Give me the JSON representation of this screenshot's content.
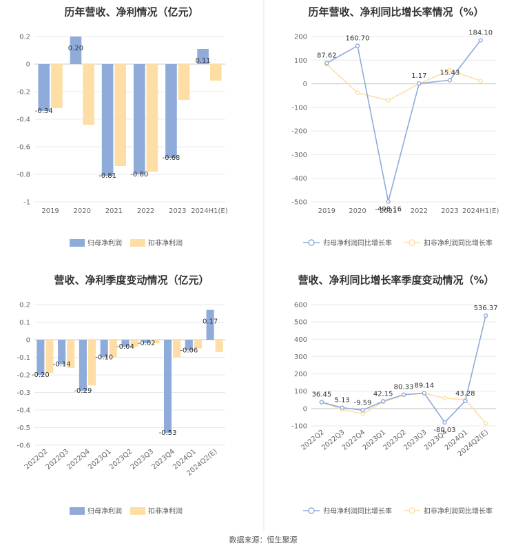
{
  "colors": {
    "primary": "#8eabd9",
    "secondary": "#ffdea6",
    "grid": "#e8e8e8",
    "axis": "#c8c8c8",
    "divider": "#e6e6e6"
  },
  "legend_labels": {
    "bar_primary": "归母净利润",
    "bar_secondary": "扣非净利润",
    "line_primary": "归母净利润同比增长率",
    "line_secondary": "扣非净利润同比增长率"
  },
  "source": "数据来源：恒生聚源",
  "chart_data": [
    {
      "type": "bar",
      "title": "历年营收、净利情况（亿元）",
      "categories": [
        "2019",
        "2020",
        "2021",
        "2022",
        "2023",
        "2024H1(E)"
      ],
      "series": [
        {
          "name": "归母净利润",
          "values": [
            -0.34,
            0.2,
            -0.81,
            -0.8,
            -0.68,
            0.11
          ]
        },
        {
          "name": "扣非净利润",
          "values": [
            -0.32,
            -0.44,
            -0.74,
            -0.78,
            -0.26,
            -0.12
          ]
        }
      ],
      "data_labels": [
        "-0.34",
        "0.20",
        "-0.81",
        "-0.80",
        "-0.68",
        "0.11"
      ],
      "y_ticks": [
        "0.2",
        "0",
        "-0.2",
        "-0.4",
        "-0.6",
        "-0.8",
        "-1"
      ],
      "ylim": [
        -1,
        0.2
      ],
      "grid": true,
      "legend": "bottom"
    },
    {
      "type": "line",
      "title": "历年营收、净利同比增长率情况（%）",
      "categories": [
        "2019",
        "2020",
        "2021",
        "2022",
        "2023",
        "2024H1(E)"
      ],
      "series": [
        {
          "name": "归母净利润同比增长率",
          "values": [
            87.62,
            160.7,
            -498.16,
            1.17,
            15.43,
            184.1
          ]
        },
        {
          "name": "扣非净利润同比增长率",
          "values": [
            82,
            -38,
            -70,
            0,
            58,
            12
          ]
        }
      ],
      "data_labels": [
        "87.62",
        "160.70",
        "-498.16",
        "1.17",
        "15.43",
        "184.10"
      ],
      "y_ticks": [
        "200",
        "100",
        "0",
        "-100",
        "-200",
        "-300",
        "-400",
        "-500"
      ],
      "ylim": [
        -500,
        200
      ],
      "grid": true,
      "legend": "bottom"
    },
    {
      "type": "bar",
      "title": "营收、净利季度变动情况（亿元）",
      "categories": [
        "2022Q2",
        "2022Q3",
        "2022Q4",
        "2023Q1",
        "2023Q2",
        "2023Q3",
        "2023Q4",
        "2024Q1",
        "2024Q2(E)"
      ],
      "series": [
        {
          "name": "归母净利润",
          "values": [
            -0.2,
            -0.14,
            -0.29,
            -0.1,
            -0.04,
            -0.02,
            -0.53,
            -0.06,
            0.17
          ]
        },
        {
          "name": "扣非净利润",
          "values": [
            -0.19,
            -0.16,
            -0.26,
            -0.1,
            -0.04,
            -0.02,
            -0.1,
            -0.05,
            -0.07
          ]
        }
      ],
      "data_labels": [
        "-0.20",
        "-0.14",
        "-0.29",
        "-0.10",
        "-0.04",
        "-0.02",
        "-0.53",
        "-0.06",
        "0.17"
      ],
      "y_ticks": [
        "0.2",
        "0.1",
        "0",
        "-0.1",
        "-0.2",
        "-0.3",
        "-0.4",
        "-0.5",
        "-0.6"
      ],
      "ylim": [
        -0.6,
        0.2
      ],
      "grid": true,
      "legend": "bottom"
    },
    {
      "type": "line",
      "title": "营收、净利同比增长率季度变动情况（%）",
      "categories": [
        "2022Q2",
        "2022Q3",
        "2022Q4",
        "2023Q1",
        "2023Q2",
        "2023Q3",
        "2023Q4",
        "2024Q1",
        "2024Q2(E)"
      ],
      "series": [
        {
          "name": "归母净利润同比增长率",
          "values": [
            36.45,
            5.13,
            -9.59,
            42.15,
            80.33,
            89.14,
            -80.03,
            43.28,
            536.37
          ]
        },
        {
          "name": "扣非净利润同比增长率",
          "values": [
            38,
            -5,
            -30,
            38,
            78,
            88,
            60,
            52,
            -85
          ]
        }
      ],
      "data_labels": [
        "36.45",
        "5.13",
        "-9.59",
        "42.15",
        "80.33",
        "89.14",
        "-80.03",
        "43.28",
        "536.37"
      ],
      "y_ticks": [
        "600",
        "500",
        "400",
        "300",
        "200",
        "100",
        "0",
        "-100"
      ],
      "ylim": [
        -100,
        600
      ],
      "grid": true,
      "legend": "bottom"
    }
  ]
}
